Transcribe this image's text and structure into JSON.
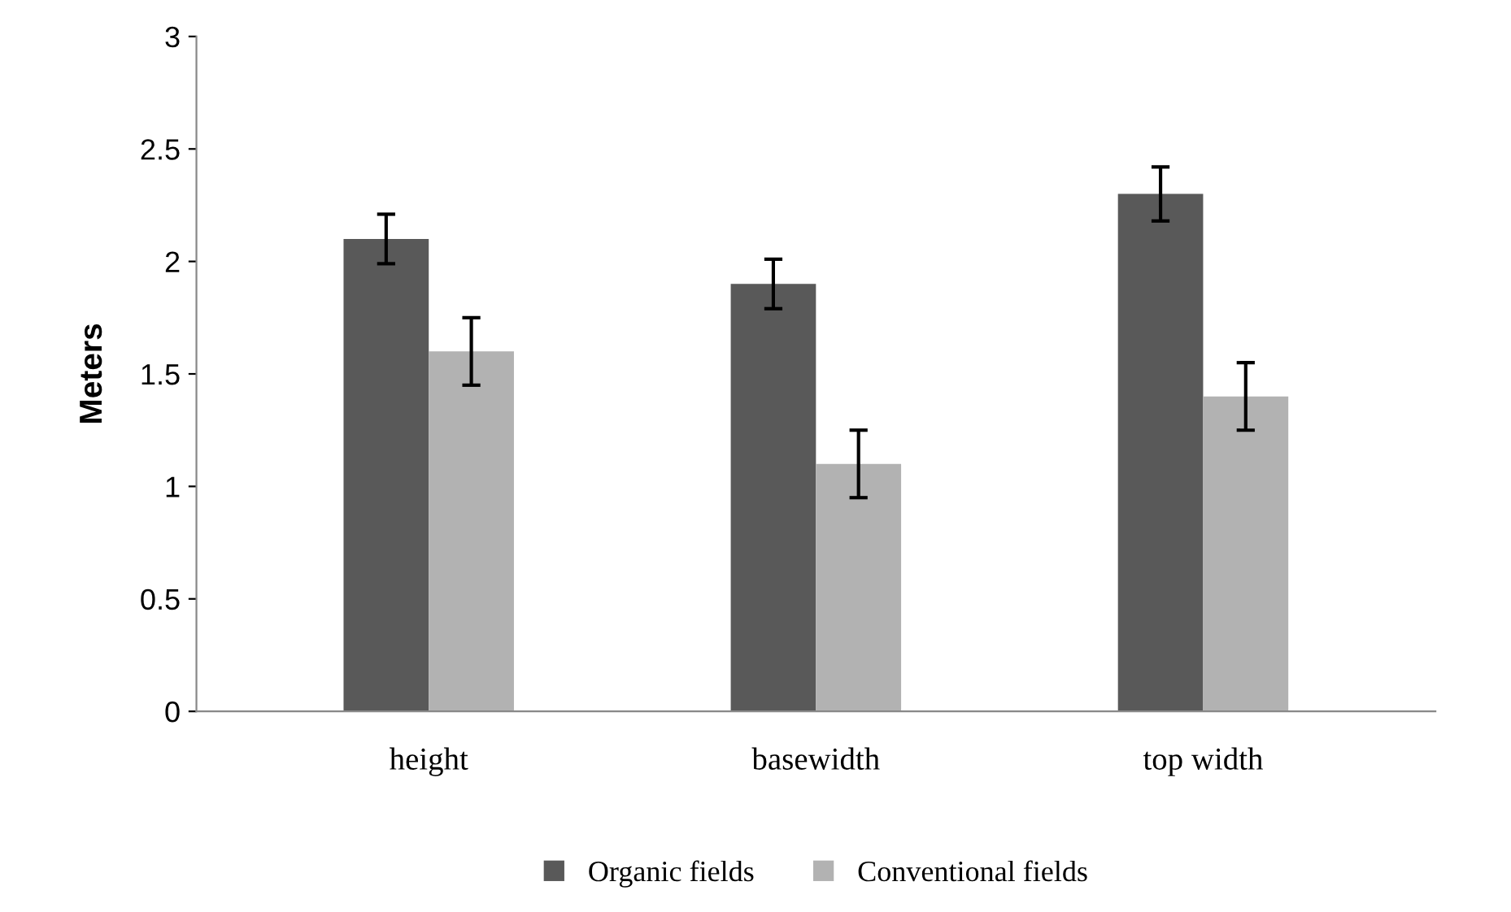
{
  "chart_data": {
    "type": "bar",
    "ylabel": "Meters",
    "categories": [
      "height",
      "basewidth",
      "top width"
    ],
    "series": [
      {
        "name": "Organic fields",
        "color": "#595959",
        "values": [
          2.1,
          1.9,
          2.3
        ],
        "errors": [
          0.11,
          0.11,
          0.12
        ]
      },
      {
        "name": "Conventional fields",
        "color": "#b2b2b2",
        "values": [
          1.6,
          1.1,
          1.4
        ],
        "errors": [
          0.15,
          0.15,
          0.15
        ]
      }
    ],
    "ylim": [
      0,
      3
    ],
    "yticks": [
      0,
      0.5,
      1,
      1.5,
      2,
      2.5,
      3
    ],
    "grid": false,
    "legend": "bottom"
  }
}
